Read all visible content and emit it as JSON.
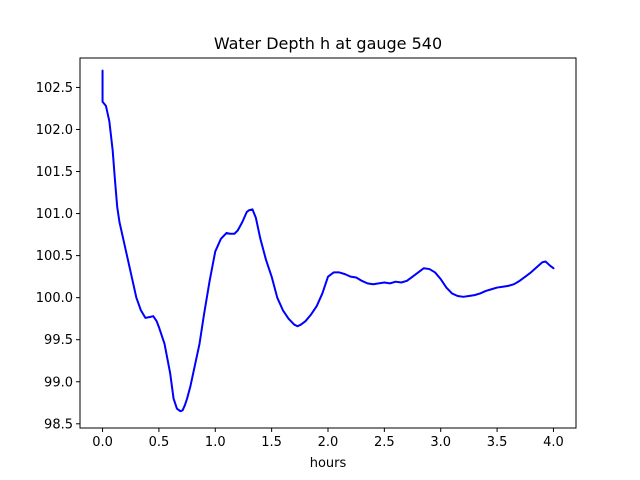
{
  "chart_data": {
    "type": "line",
    "title": "Water Depth h at gauge 540",
    "xlabel": "hours",
    "ylabel": "",
    "xlim": [
      -0.2,
      4.2
    ],
    "ylim": [
      98.45,
      102.85
    ],
    "xticks": [
      0.0,
      0.5,
      1.0,
      1.5,
      2.0,
      2.5,
      3.0,
      3.5,
      4.0
    ],
    "xtick_labels": [
      "0.0",
      "0.5",
      "1.0",
      "1.5",
      "2.0",
      "2.5",
      "3.0",
      "3.5",
      "4.0"
    ],
    "yticks": [
      98.5,
      99.0,
      99.5,
      100.0,
      100.5,
      101.0,
      101.5,
      102.0,
      102.5
    ],
    "ytick_labels": [
      "98.5",
      "99.0",
      "99.5",
      "100.0",
      "100.5",
      "101.0",
      "101.5",
      "102.0",
      "102.5"
    ],
    "grid": false,
    "series": [
      {
        "color": "#0000ff",
        "x": [
          0.0,
          0.0,
          0.03,
          0.06,
          0.09,
          0.11,
          0.13,
          0.15,
          0.2,
          0.25,
          0.3,
          0.34,
          0.38,
          0.42,
          0.45,
          0.48,
          0.5,
          0.55,
          0.6,
          0.63,
          0.66,
          0.69,
          0.71,
          0.73,
          0.75,
          0.78,
          0.82,
          0.86,
          0.9,
          0.95,
          1.0,
          1.05,
          1.1,
          1.13,
          1.17,
          1.2,
          1.24,
          1.28,
          1.3,
          1.33,
          1.36,
          1.4,
          1.45,
          1.5,
          1.55,
          1.6,
          1.65,
          1.7,
          1.73,
          1.76,
          1.8,
          1.85,
          1.9,
          1.95,
          2.0,
          2.05,
          2.1,
          2.15,
          2.2,
          2.25,
          2.3,
          2.35,
          2.4,
          2.45,
          2.5,
          2.55,
          2.6,
          2.65,
          2.7,
          2.75,
          2.8,
          2.85,
          2.9,
          2.95,
          3.0,
          3.05,
          3.1,
          3.15,
          3.2,
          3.25,
          3.3,
          3.35,
          3.4,
          3.45,
          3.5,
          3.55,
          3.6,
          3.65,
          3.7,
          3.75,
          3.8,
          3.85,
          3.9,
          3.93,
          3.97,
          4.0
        ],
        "y": [
          102.7,
          102.33,
          102.28,
          102.1,
          101.75,
          101.4,
          101.08,
          100.9,
          100.6,
          100.3,
          100.0,
          99.85,
          99.76,
          99.77,
          99.78,
          99.72,
          99.65,
          99.45,
          99.1,
          98.8,
          98.68,
          98.65,
          98.66,
          98.72,
          98.8,
          98.95,
          99.2,
          99.45,
          99.8,
          100.2,
          100.55,
          100.7,
          100.77,
          100.76,
          100.76,
          100.8,
          100.9,
          101.02,
          101.04,
          101.05,
          100.95,
          100.7,
          100.45,
          100.25,
          100.0,
          99.85,
          99.75,
          99.68,
          99.66,
          99.68,
          99.72,
          99.8,
          99.9,
          100.05,
          100.25,
          100.3,
          100.3,
          100.28,
          100.25,
          100.24,
          100.2,
          100.17,
          100.16,
          100.17,
          100.18,
          100.17,
          100.19,
          100.18,
          100.2,
          100.25,
          100.3,
          100.35,
          100.34,
          100.3,
          100.22,
          100.12,
          100.05,
          100.02,
          100.01,
          100.02,
          100.03,
          100.05,
          100.08,
          100.1,
          100.12,
          100.13,
          100.14,
          100.16,
          100.2,
          100.25,
          100.3,
          100.36,
          100.42,
          100.43,
          100.38,
          100.35
        ]
      }
    ]
  }
}
